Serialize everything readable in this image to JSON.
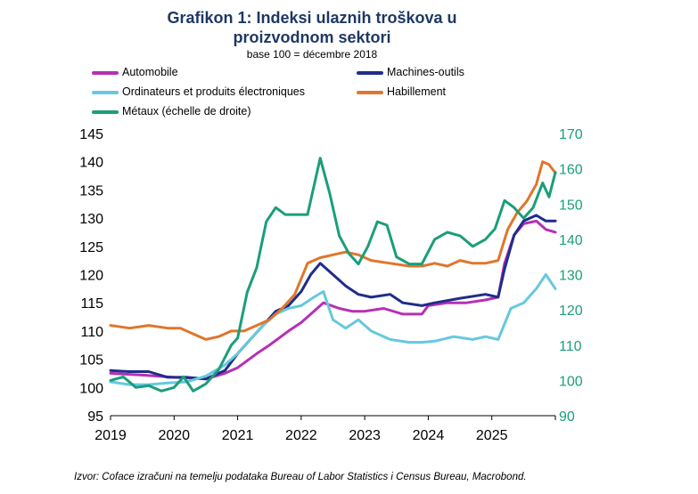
{
  "chart_data": {
    "type": "line",
    "title_lines": [
      "Grafikon 1: Indeksi ulaznih troškova u",
      "proizvodnom sektori"
    ],
    "subtitle": "base 100 = décembre 2018",
    "source": "Izvor: Coface izračuni na temelju podataka Bureau of Labor Statistics i Census Bureau, Macrobond.",
    "x_ticks": [
      "2019",
      "2020",
      "2021",
      "2022",
      "2023",
      "2024",
      "2025"
    ],
    "y_left": {
      "ticks": [
        "95",
        "100",
        "105",
        "110",
        "115",
        "120",
        "125",
        "130",
        "135",
        "140",
        "145"
      ],
      "lim": [
        95,
        145
      ]
    },
    "y_right": {
      "ticks": [
        "90",
        "100",
        "110",
        "120",
        "130",
        "140",
        "150",
        "160",
        "170"
      ],
      "lim": [
        90,
        170
      ]
    },
    "x_range": [
      2019,
      2026
    ],
    "series": [
      {
        "name": "Automobile",
        "key": "auto",
        "axis": "left",
        "color": "#b530b5",
        "points": [
          [
            2019,
            102.5
          ],
          [
            2019.5,
            102.2
          ],
          [
            2020,
            101.8
          ],
          [
            2020.5,
            101.5
          ],
          [
            2020.8,
            102.5
          ],
          [
            2021,
            103.5
          ],
          [
            2021.3,
            106
          ],
          [
            2021.5,
            107.5
          ],
          [
            2021.8,
            110
          ],
          [
            2022,
            111.5
          ],
          [
            2022.2,
            113.5
          ],
          [
            2022.35,
            115
          ],
          [
            2022.6,
            114
          ],
          [
            2022.8,
            113.5
          ],
          [
            2023,
            113.5
          ],
          [
            2023.3,
            114
          ],
          [
            2023.6,
            113
          ],
          [
            2023.9,
            113
          ],
          [
            2024,
            114.5
          ],
          [
            2024.3,
            115
          ],
          [
            2024.6,
            115
          ],
          [
            2024.9,
            115.5
          ],
          [
            2025.1,
            116
          ],
          [
            2025.2,
            122
          ],
          [
            2025.35,
            127
          ],
          [
            2025.5,
            129
          ],
          [
            2025.7,
            129.5
          ],
          [
            2025.85,
            128
          ],
          [
            2026,
            127.5
          ]
        ]
      },
      {
        "name": "Machines-outils",
        "key": "mach",
        "axis": "left",
        "color": "#1f2d8c",
        "points": [
          [
            2019,
            103
          ],
          [
            2019.3,
            102.8
          ],
          [
            2019.6,
            102.8
          ],
          [
            2019.9,
            101.8
          ],
          [
            2020.2,
            101.8
          ],
          [
            2020.5,
            101.5
          ],
          [
            2020.8,
            103
          ],
          [
            2021,
            106
          ],
          [
            2021.2,
            108.5
          ],
          [
            2021.4,
            111
          ],
          [
            2021.6,
            113.5
          ],
          [
            2021.8,
            114.5
          ],
          [
            2022,
            117
          ],
          [
            2022.15,
            120
          ],
          [
            2022.3,
            122
          ],
          [
            2022.5,
            120
          ],
          [
            2022.7,
            118
          ],
          [
            2022.9,
            116.5
          ],
          [
            2023.1,
            116
          ],
          [
            2023.4,
            116.5
          ],
          [
            2023.6,
            115
          ],
          [
            2023.9,
            114.5
          ],
          [
            2024.1,
            115
          ],
          [
            2024.5,
            115.8
          ],
          [
            2024.9,
            116.5
          ],
          [
            2025.1,
            116
          ],
          [
            2025.2,
            121
          ],
          [
            2025.35,
            127
          ],
          [
            2025.5,
            129.5
          ],
          [
            2025.7,
            130.5
          ],
          [
            2025.85,
            129.5
          ],
          [
            2026,
            129.5
          ]
        ]
      },
      {
        "name": "Ordinateurs et produits électroniques",
        "key": "ordi",
        "axis": "left",
        "color": "#66c8de",
        "points": [
          [
            2019,
            101
          ],
          [
            2019.3,
            100.5
          ],
          [
            2019.6,
            100.5
          ],
          [
            2019.9,
            100.8
          ],
          [
            2020.2,
            101
          ],
          [
            2020.5,
            102
          ],
          [
            2020.8,
            104
          ],
          [
            2021,
            106
          ],
          [
            2021.2,
            108.5
          ],
          [
            2021.4,
            111
          ],
          [
            2021.6,
            113
          ],
          [
            2021.8,
            114
          ],
          [
            2022,
            114.5
          ],
          [
            2022.2,
            116
          ],
          [
            2022.35,
            117
          ],
          [
            2022.5,
            112
          ],
          [
            2022.7,
            110.5
          ],
          [
            2022.9,
            112
          ],
          [
            2023.1,
            110
          ],
          [
            2023.4,
            108.5
          ],
          [
            2023.7,
            108
          ],
          [
            2023.9,
            108
          ],
          [
            2024.1,
            108.2
          ],
          [
            2024.4,
            109
          ],
          [
            2024.7,
            108.5
          ],
          [
            2024.9,
            109
          ],
          [
            2025.1,
            108.5
          ],
          [
            2025.3,
            114
          ],
          [
            2025.5,
            115
          ],
          [
            2025.7,
            117.5
          ],
          [
            2025.85,
            120
          ],
          [
            2026,
            117.5
          ]
        ]
      },
      {
        "name": "Habillement",
        "key": "habi",
        "axis": "left",
        "color": "#e0762b",
        "points": [
          [
            2019,
            111
          ],
          [
            2019.3,
            110.5
          ],
          [
            2019.6,
            111
          ],
          [
            2019.9,
            110.5
          ],
          [
            2020.1,
            110.5
          ],
          [
            2020.3,
            109.5
          ],
          [
            2020.5,
            108.5
          ],
          [
            2020.7,
            109
          ],
          [
            2020.9,
            110
          ],
          [
            2021.1,
            110
          ],
          [
            2021.3,
            111
          ],
          [
            2021.5,
            112
          ],
          [
            2021.7,
            114
          ],
          [
            2021.9,
            116.5
          ],
          [
            2022.1,
            122
          ],
          [
            2022.3,
            123
          ],
          [
            2022.5,
            123.5
          ],
          [
            2022.7,
            124
          ],
          [
            2022.9,
            123.5
          ],
          [
            2023.1,
            122.5
          ],
          [
            2023.4,
            122
          ],
          [
            2023.7,
            121.5
          ],
          [
            2023.9,
            121.5
          ],
          [
            2024.1,
            122
          ],
          [
            2024.3,
            121.5
          ],
          [
            2024.5,
            122.5
          ],
          [
            2024.7,
            122
          ],
          [
            2024.9,
            122
          ],
          [
            2025.1,
            122.5
          ],
          [
            2025.25,
            128
          ],
          [
            2025.4,
            131
          ],
          [
            2025.55,
            133
          ],
          [
            2025.7,
            136
          ],
          [
            2025.8,
            140
          ],
          [
            2025.9,
            139.5
          ],
          [
            2026,
            138
          ]
        ]
      },
      {
        "name": "Métaux (échelle de droite)",
        "key": "meta",
        "axis": "right",
        "color": "#1a9e7a",
        "points": [
          [
            2019,
            100
          ],
          [
            2019.2,
            101
          ],
          [
            2019.4,
            98
          ],
          [
            2019.6,
            98.5
          ],
          [
            2019.8,
            97
          ],
          [
            2020,
            98
          ],
          [
            2020.15,
            101
          ],
          [
            2020.3,
            97
          ],
          [
            2020.5,
            99
          ],
          [
            2020.7,
            103
          ],
          [
            2020.9,
            110
          ],
          [
            2021,
            112
          ],
          [
            2021.15,
            125
          ],
          [
            2021.3,
            132
          ],
          [
            2021.45,
            145
          ],
          [
            2021.6,
            149
          ],
          [
            2021.75,
            147
          ],
          [
            2021.9,
            147
          ],
          [
            2022.1,
            147
          ],
          [
            2022.2,
            155
          ],
          [
            2022.3,
            163
          ],
          [
            2022.45,
            153
          ],
          [
            2022.6,
            141
          ],
          [
            2022.75,
            136
          ],
          [
            2022.9,
            133
          ],
          [
            2023.05,
            138
          ],
          [
            2023.2,
            145
          ],
          [
            2023.35,
            144
          ],
          [
            2023.5,
            135
          ],
          [
            2023.7,
            133
          ],
          [
            2023.9,
            133
          ],
          [
            2024.1,
            140
          ],
          [
            2024.3,
            142
          ],
          [
            2024.5,
            141
          ],
          [
            2024.7,
            138
          ],
          [
            2024.9,
            140
          ],
          [
            2025.05,
            143
          ],
          [
            2025.2,
            151
          ],
          [
            2025.35,
            149
          ],
          [
            2025.5,
            146
          ],
          [
            2025.65,
            149
          ],
          [
            2025.8,
            156
          ],
          [
            2025.9,
            152
          ],
          [
            2026,
            159
          ]
        ]
      }
    ]
  }
}
